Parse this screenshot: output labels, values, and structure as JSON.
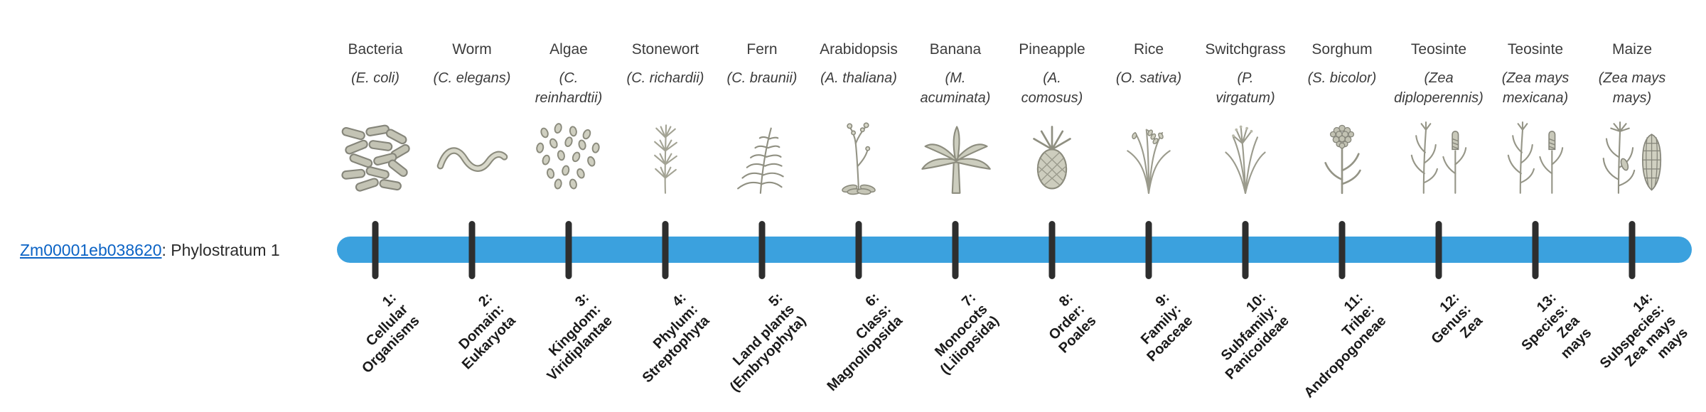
{
  "colors": {
    "bar": "#3BA1DE",
    "tick": "#2E2E2E",
    "link": "#0B63C5",
    "text": "#3C3C3C"
  },
  "gene": {
    "id": "Zm00001eb038620",
    "suffix": ": Phylostratum 1"
  },
  "taxa": [
    {
      "common_name": "Bacteria",
      "scientific_name_lines": [
        "(E. coli)"
      ],
      "icon": "bacteria",
      "stratum_lines": [
        "1:",
        "Cellular",
        "Organisms"
      ]
    },
    {
      "common_name": "Worm",
      "scientific_name_lines": [
        "(C. elegans)"
      ],
      "icon": "worm",
      "stratum_lines": [
        "2:",
        "Domain:",
        "Eukaryota"
      ]
    },
    {
      "common_name": "Algae",
      "scientific_name_lines": [
        "(C.",
        "reinhardtii)"
      ],
      "icon": "algae",
      "stratum_lines": [
        "3:",
        "Kingdom:",
        "Viridiplantae"
      ]
    },
    {
      "common_name": "Stonewort",
      "scientific_name_lines": [
        "(C. richardii)"
      ],
      "icon": "stonewort",
      "stratum_lines": [
        "4:",
        "Phylum:",
        "Streptophyta"
      ]
    },
    {
      "common_name": "Fern",
      "scientific_name_lines": [
        "(C. braunii)"
      ],
      "icon": "fern",
      "stratum_lines": [
        "5:",
        "Land plants",
        "(Embryophyta)"
      ]
    },
    {
      "common_name": "Arabidopsis",
      "scientific_name_lines": [
        "(A. thaliana)"
      ],
      "icon": "arabidopsis",
      "stratum_lines": [
        "6:",
        "Class:",
        "Magnoliopsida"
      ]
    },
    {
      "common_name": "Banana",
      "scientific_name_lines": [
        "(M.",
        "acuminata)"
      ],
      "icon": "banana",
      "stratum_lines": [
        "7:",
        "Monocots",
        "(Liliopsida)"
      ]
    },
    {
      "common_name": "Pineapple",
      "scientific_name_lines": [
        "(A.",
        "comosus)"
      ],
      "icon": "pineapple",
      "stratum_lines": [
        "8:",
        "Order:",
        "Poales"
      ]
    },
    {
      "common_name": "Rice",
      "scientific_name_lines": [
        "(O. sativa)"
      ],
      "icon": "rice",
      "stratum_lines": [
        "9:",
        "Family:",
        "Poaceae"
      ]
    },
    {
      "common_name": "Switchgrass",
      "scientific_name_lines": [
        "(P.",
        "virgatum)"
      ],
      "icon": "switchgrass",
      "stratum_lines": [
        "10:",
        "Subfamily:",
        "Panicoideae"
      ]
    },
    {
      "common_name": "Sorghum",
      "scientific_name_lines": [
        "(S. bicolor)"
      ],
      "icon": "sorghum",
      "stratum_lines": [
        "11:",
        "Tribe:",
        "Andropogoneae"
      ]
    },
    {
      "common_name": "Teosinte",
      "scientific_name_lines": [
        "(Zea",
        "diploperennis)"
      ],
      "icon": "teosinte",
      "stratum_lines": [
        "12:",
        "Genus:",
        "Zea"
      ]
    },
    {
      "common_name": "Teosinte",
      "scientific_name_lines": [
        "(Zea mays",
        "mexicana)"
      ],
      "icon": "teosinte",
      "stratum_lines": [
        "13:",
        "Species:",
        "Zea",
        "mays"
      ]
    },
    {
      "common_name": "Maize",
      "scientific_name_lines": [
        "(Zea mays",
        "mays)"
      ],
      "icon": "maize",
      "stratum_lines": [
        "14:",
        "Subspecies:",
        "Zea mays",
        "mays"
      ]
    }
  ]
}
